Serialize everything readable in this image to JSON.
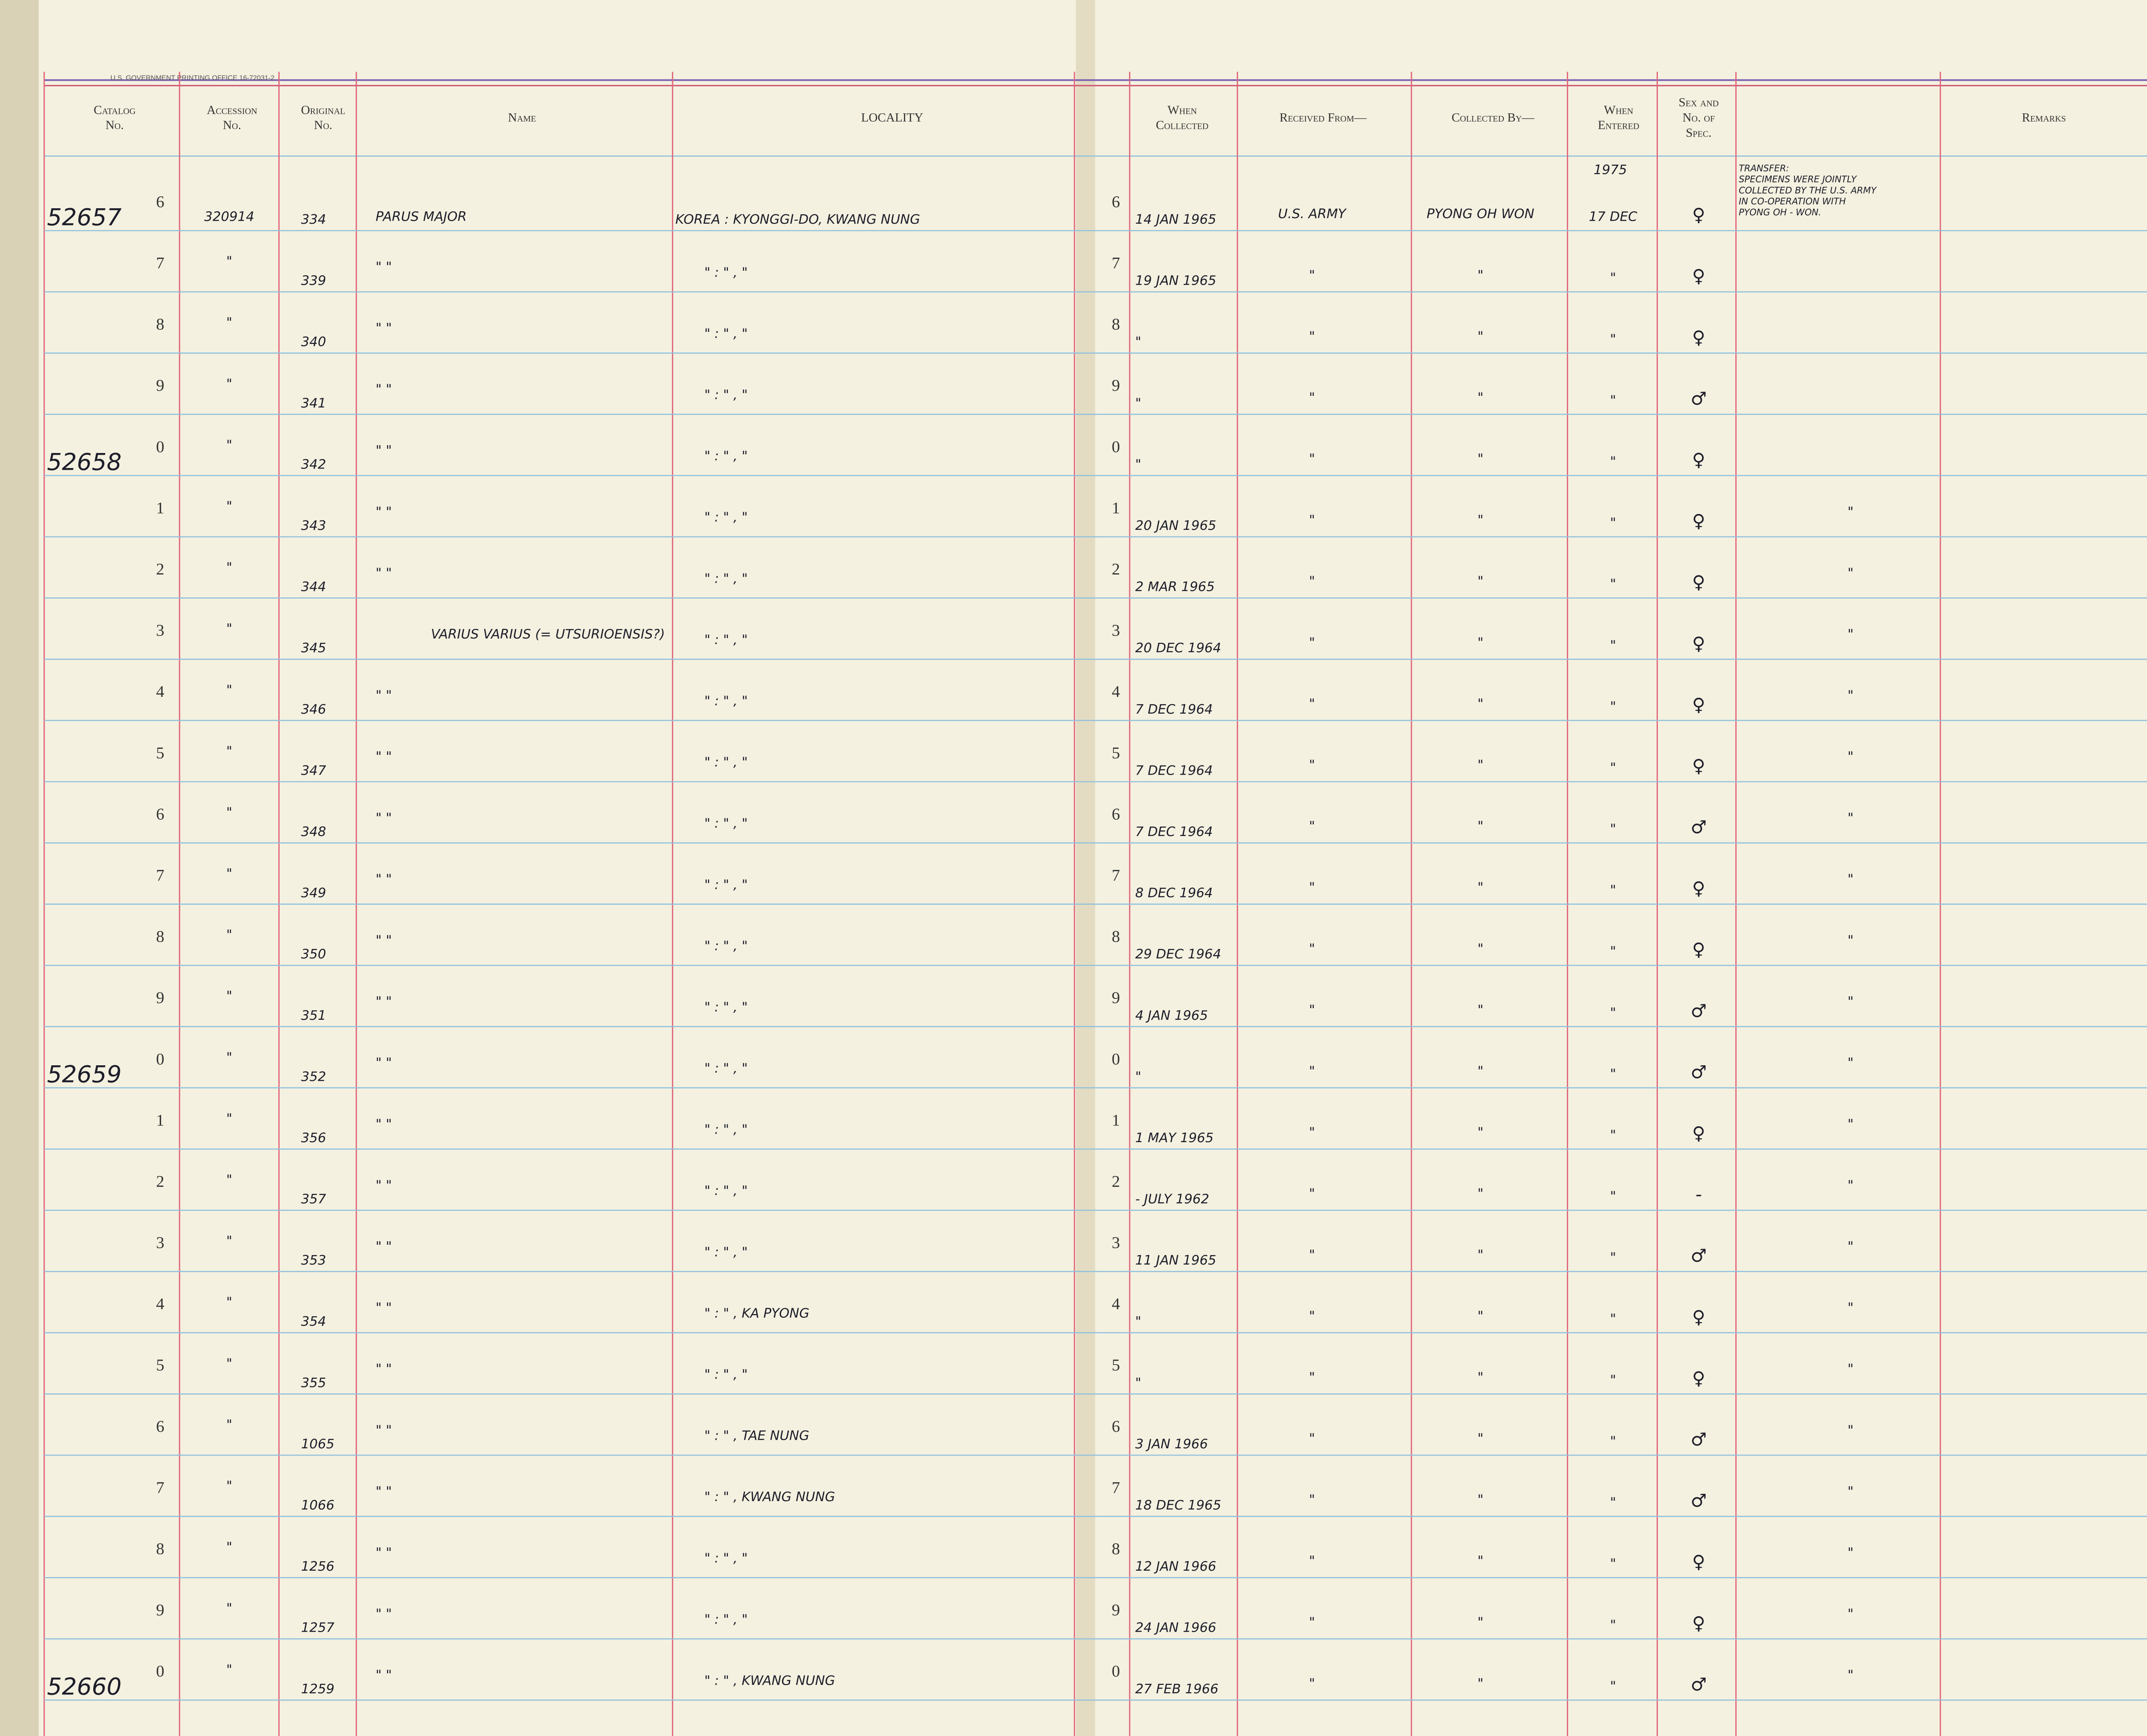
{
  "imprint": "U.S. GOVERNMENT PRINTING OFFICE 16-72031-2",
  "headers": [
    [
      "Catalog",
      "No."
    ],
    [
      "Accession",
      "No."
    ],
    [
      "Original",
      "No."
    ],
    [
      "Name"
    ],
    [
      "LOCALITY"
    ],
    [
      "When",
      "Collected"
    ],
    [
      "Received From—"
    ],
    [
      "Collected By—"
    ],
    [
      "When",
      "Entered"
    ],
    [
      "Sex and",
      "No. of",
      "Spec."
    ],
    [
      "Remarks"
    ]
  ],
  "remarks_note": [
    "TRANSFER:",
    "SPECIMENS WERE JOINTLY",
    "COLLECTED BY THE U.S. ARMY",
    "IN CO-OPERATION WITH",
    "PYONG OH - WON."
  ],
  "rows": [
    {
      "catalog": "52657",
      "digit": "6",
      "accession": "320914",
      "original": "334",
      "name": "PARUS MAJOR",
      "locality": "KOREA : KYONGGI-DO, KWANG NUNG",
      "collected": "14 JAN 1965",
      "received": "U.S. ARMY",
      "collected_by": "PYONG OH WON",
      "entered_year": "1975",
      "entered": "17 DEC",
      "sex": "♀"
    },
    {
      "digit": "7",
      "accession": "\"",
      "original": "339",
      "name": "\"    \"",
      "locality": "\"   :   \"   ,   \"",
      "collected": "19 JAN 1965",
      "received": "\"",
      "collected_by": "\"",
      "entered": "\"",
      "sex": "♀"
    },
    {
      "digit": "8",
      "accession": "\"",
      "original": "340",
      "name": "\"    \"",
      "locality": "\"   :   \"   ,   \"",
      "collected": "\"",
      "received": "\"",
      "collected_by": "\"",
      "entered": "\"",
      "sex": "♀"
    },
    {
      "digit": "9",
      "accession": "\"",
      "original": "341",
      "name": "\"    \"",
      "locality": "\"   :   \"   ,   \"",
      "collected": "\"",
      "received": "\"",
      "collected_by": "\"",
      "entered": "\"",
      "sex": "♂"
    },
    {
      "catalog": "52658",
      "digit": "0",
      "accession": "\"",
      "original": "342",
      "name": "\"    \"",
      "locality": "\"   :   \"   ,   \"",
      "collected": "\"",
      "received": "\"",
      "collected_by": "\"",
      "entered": "\"",
      "sex": "♀"
    },
    {
      "digit": "1",
      "accession": "\"",
      "original": "343",
      "name": "\"    \"",
      "locality": "\"   :   \"   ,   \"",
      "collected": "20 JAN 1965",
      "received": "\"",
      "collected_by": "\"",
      "entered": "\"",
      "sex": "♀",
      "remarks": "\""
    },
    {
      "digit": "2",
      "accession": "\"",
      "original": "344",
      "name": "\"    \"",
      "locality": "\"   :   \"   ,   \"",
      "collected": "2 MAR 1965",
      "received": "\"",
      "collected_by": "\"",
      "entered": "\"",
      "sex": "♀",
      "remarks": "\""
    },
    {
      "digit": "3",
      "accession": "\"",
      "original": "345",
      "name": "VARIUS VARIUS (= UTSURIOENSIS?)",
      "locality": "\"   :   \"   ,   \"",
      "collected": "20 DEC 1964",
      "received": "\"",
      "collected_by": "\"",
      "entered": "\"",
      "sex": "♀",
      "remarks": "\""
    },
    {
      "digit": "4",
      "accession": "\"",
      "original": "346",
      "name": "\"    \"",
      "locality": "\"   :   \"   ,   \"",
      "collected": "7 DEC 1964",
      "received": "\"",
      "collected_by": "\"",
      "entered": "\"",
      "sex": "♀",
      "remarks": "\""
    },
    {
      "digit": "5",
      "accession": "\"",
      "original": "347",
      "name": "\"    \"",
      "locality": "\"   :   \"   ,   \"",
      "collected": "7 DEC 1964",
      "received": "\"",
      "collected_by": "\"",
      "entered": "\"",
      "sex": "♀",
      "remarks": "\""
    },
    {
      "digit": "6",
      "accession": "\"",
      "original": "348",
      "name": "\"    \"",
      "locality": "\"   :   \"   ,   \"",
      "collected": "7 DEC 1964",
      "received": "\"",
      "collected_by": "\"",
      "entered": "\"",
      "sex": "♂",
      "remarks": "\""
    },
    {
      "digit": "7",
      "accession": "\"",
      "original": "349",
      "name": "\"    \"",
      "locality": "\"   :   \"   ,   \"",
      "collected": "8 DEC 1964",
      "received": "\"",
      "collected_by": "\"",
      "entered": "\"",
      "sex": "♀",
      "remarks": "\""
    },
    {
      "digit": "8",
      "accession": "\"",
      "original": "350",
      "name": "\"    \"",
      "locality": "\"   :   \"   ,   \"",
      "collected": "29 DEC 1964",
      "received": "\"",
      "collected_by": "\"",
      "entered": "\"",
      "sex": "♀",
      "remarks": "\""
    },
    {
      "digit": "9",
      "accession": "\"",
      "original": "351",
      "name": "\"    \"",
      "locality": "\"   :   \"   ,   \"",
      "collected": "4 JAN 1965",
      "received": "\"",
      "collected_by": "\"",
      "entered": "\"",
      "sex": "♂",
      "remarks": "\""
    },
    {
      "catalog": "52659",
      "digit": "0",
      "accession": "\"",
      "original": "352",
      "name": "\"    \"",
      "locality": "\"   :   \"   ,   \"",
      "collected": "\"",
      "received": "\"",
      "collected_by": "\"",
      "entered": "\"",
      "sex": "♂",
      "remarks": "\""
    },
    {
      "digit": "1",
      "accession": "\"",
      "original": "356",
      "name": "\"    \"",
      "locality": "\"   :   \"   ,   \"",
      "collected": "1 MAY 1965",
      "received": "\"",
      "collected_by": "\"",
      "entered": "\"",
      "sex": "♀",
      "remarks": "\""
    },
    {
      "digit": "2",
      "accession": "\"",
      "original": "357",
      "name": "\"    \"",
      "locality": "\"   :   \"   ,   \"",
      "collected": "- JULY 1962",
      "received": "\"",
      "collected_by": "\"",
      "entered": "\"",
      "sex": "-",
      "remarks": "\""
    },
    {
      "digit": "3",
      "accession": "\"",
      "original": "353",
      "name": "\"    \"",
      "locality": "\"   :   \"   ,   \"",
      "collected": "11 JAN 1965",
      "received": "\"",
      "collected_by": "\"",
      "entered": "\"",
      "sex": "♂",
      "remarks": "\""
    },
    {
      "digit": "4",
      "accession": "\"",
      "original": "354",
      "name": "\"    \"",
      "locality": "\"   :   \"   ,   KA PYONG",
      "collected": "\"",
      "received": "\"",
      "collected_by": "\"",
      "entered": "\"",
      "sex": "♀",
      "remarks": "\""
    },
    {
      "digit": "5",
      "accession": "\"",
      "original": "355",
      "name": "\"    \"",
      "locality": "\"   :   \"   ,   \"",
      "collected": "\"",
      "received": "\"",
      "collected_by": "\"",
      "entered": "\"",
      "sex": "♀",
      "remarks": "\""
    },
    {
      "digit": "6",
      "accession": "\"",
      "original": "1065",
      "name": "\"    \"",
      "locality": "\"   :   \"   ,   TAE NUNG",
      "collected": "3 JAN 1966",
      "received": "\"",
      "collected_by": "\"",
      "entered": "\"",
      "sex": "♂",
      "remarks": "\""
    },
    {
      "digit": "7",
      "accession": "\"",
      "original": "1066",
      "name": "\"    \"",
      "locality": "\"   :   \"   ,   KWANG NUNG",
      "collected": "18 DEC 1965",
      "received": "\"",
      "collected_by": "\"",
      "entered": "\"",
      "sex": "♂",
      "remarks": "\""
    },
    {
      "digit": "8",
      "accession": "\"",
      "original": "1256",
      "name": "\"    \"",
      "locality": "\"   :   \"   ,   \"",
      "collected": "12 JAN 1966",
      "received": "\"",
      "collected_by": "\"",
      "entered": "\"",
      "sex": "♀",
      "remarks": "\""
    },
    {
      "digit": "9",
      "accession": "\"",
      "original": "1257",
      "name": "\"    \"",
      "locality": "\"   :   \"   ,   \"",
      "collected": "24 JAN 1966",
      "received": "\"",
      "collected_by": "\"",
      "entered": "\"",
      "sex": "♀",
      "remarks": "\""
    },
    {
      "catalog": "52660",
      "digit": "0",
      "accession": "\"",
      "original": "1259",
      "name": "\"    \"",
      "locality": "\"   :   \"   ,   KWANG NUNG",
      "collected": "27 FEB 1966",
      "received": "\"",
      "collected_by": "\"",
      "entered": "\"",
      "sex": "♂",
      "remarks": "\""
    }
  ]
}
